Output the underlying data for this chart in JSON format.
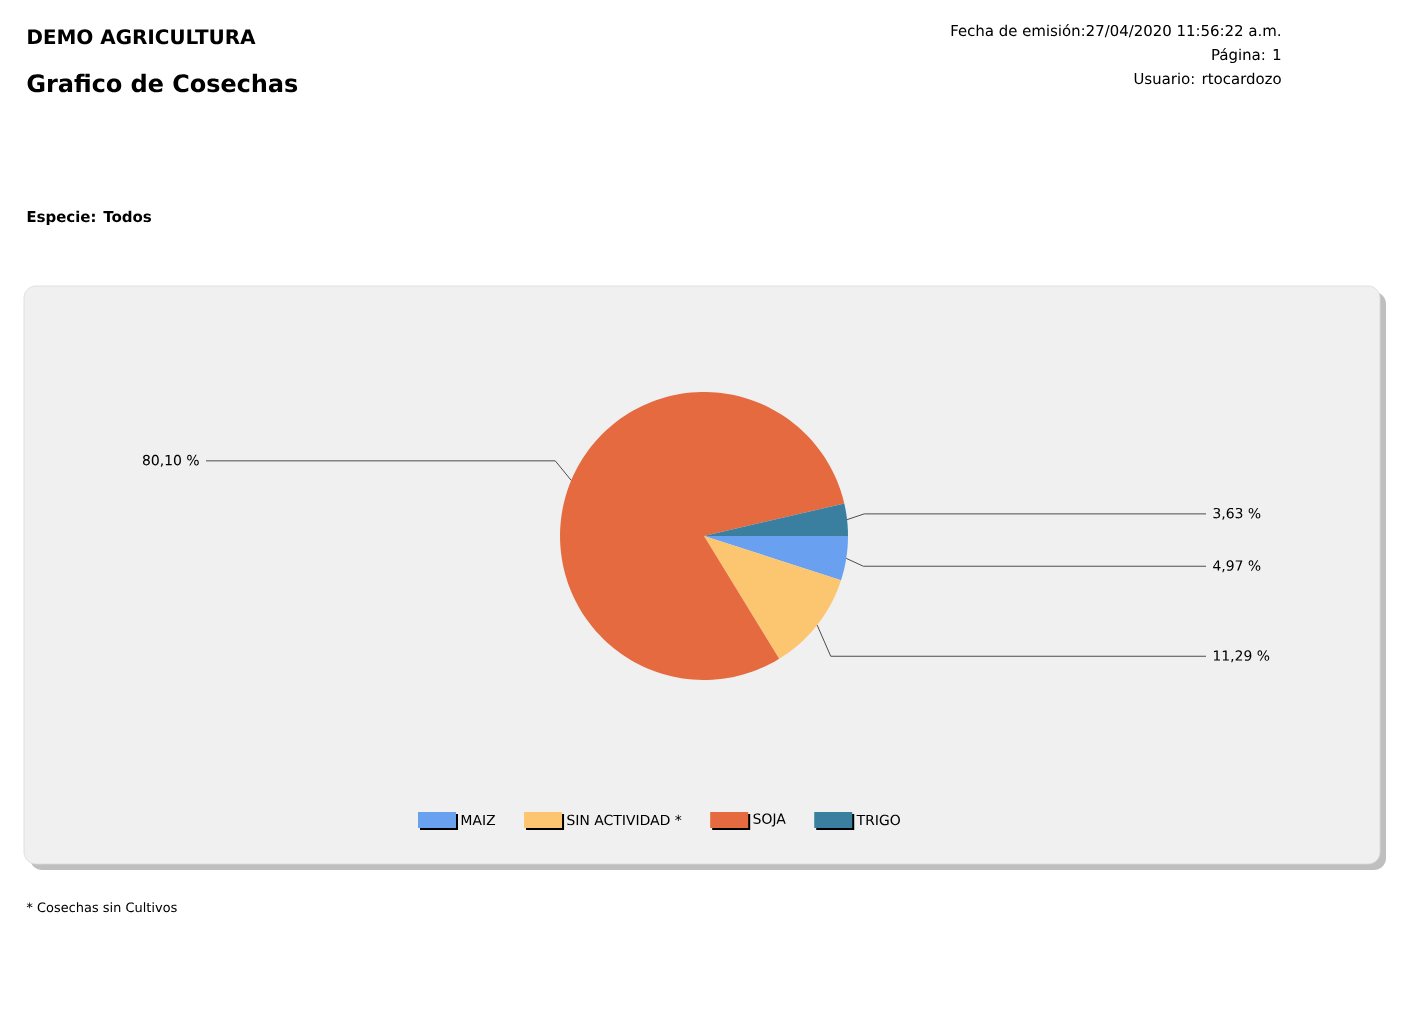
{
  "chart_data": {
    "type": "pie",
    "title": "Grafico de Cosechas",
    "annotations": [
      "DEMO AGRICULTURA",
      "Fecha de emisión:27/04/2020 11:56:22 a.m.",
      "Página: 1",
      "Usuario: rtocardozo",
      "Especie: Todos",
      "* Cosechas sin Cultivos"
    ],
    "categories": [
      "MAIZ",
      "SIN ACTIVIDAD *",
      "SOJA",
      "TRIGO"
    ],
    "values": [
      4.97,
      11.29,
      80.1,
      3.63
    ],
    "value_labels": [
      "4,97 %",
      "11,29 %",
      "80,10 %",
      "3,63 %"
    ],
    "colors": [
      "#6aa0f0",
      "#fcc670",
      "#e56a40",
      "#3a7fa0"
    ],
    "legend": "bottom"
  }
}
